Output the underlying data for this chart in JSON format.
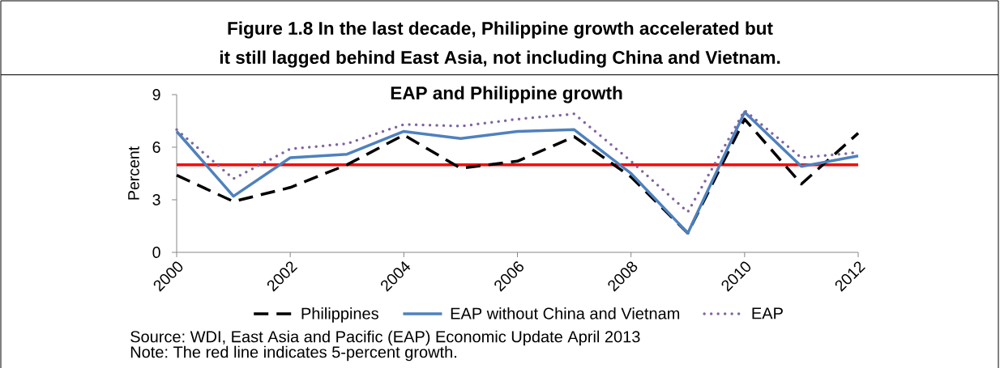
{
  "chart_data": {
    "type": "line",
    "title": "Figure 1.8 In the last decade, Philippine growth accelerated but it still lagged behind East Asia, not including China and Vietnam.",
    "subtitle": "EAP and Philippine growth",
    "ylabel": "Percent",
    "annotations": [
      "Source: WDI, East Asia and Pacific (EAP) Economic Update April 2013",
      "Note: The red line indicates 5-percent growth."
    ],
    "x": [
      2000,
      2001,
      2002,
      2003,
      2004,
      2005,
      2006,
      2007,
      2008,
      2009,
      2010,
      2011,
      2012
    ],
    "series": [
      {
        "name": "Philippines",
        "color": "#000000",
        "line_style": "dashed",
        "values": [
          4.4,
          2.9,
          3.7,
          5.0,
          6.7,
          4.8,
          5.2,
          6.6,
          4.3,
          1.1,
          7.6,
          3.9,
          6.8
        ]
      },
      {
        "name": "EAP without China and Vietnam",
        "color": "#4f81bd",
        "line_style": "solid",
        "values": [
          6.9,
          3.2,
          5.4,
          5.6,
          6.9,
          6.5,
          6.9,
          7.0,
          4.5,
          1.1,
          8.0,
          4.9,
          5.5
        ]
      },
      {
        "name": "EAP",
        "color": "#8064a2",
        "line_style": "dotted",
        "values": [
          7.0,
          4.2,
          5.9,
          6.2,
          7.3,
          7.2,
          7.6,
          7.9,
          5.2,
          2.3,
          8.1,
          5.4,
          5.7
        ]
      }
    ],
    "xlim": [
      2000,
      2012
    ],
    "xticks": [
      2000,
      2002,
      2004,
      2006,
      2008,
      2010,
      2012
    ],
    "ylim": [
      0,
      9
    ],
    "yticks": [
      0,
      3,
      6,
      9
    ],
    "ref_lines": [
      {
        "axis": "y",
        "value": 5,
        "color": "#ff0000"
      }
    ],
    "legend": "bottom"
  }
}
